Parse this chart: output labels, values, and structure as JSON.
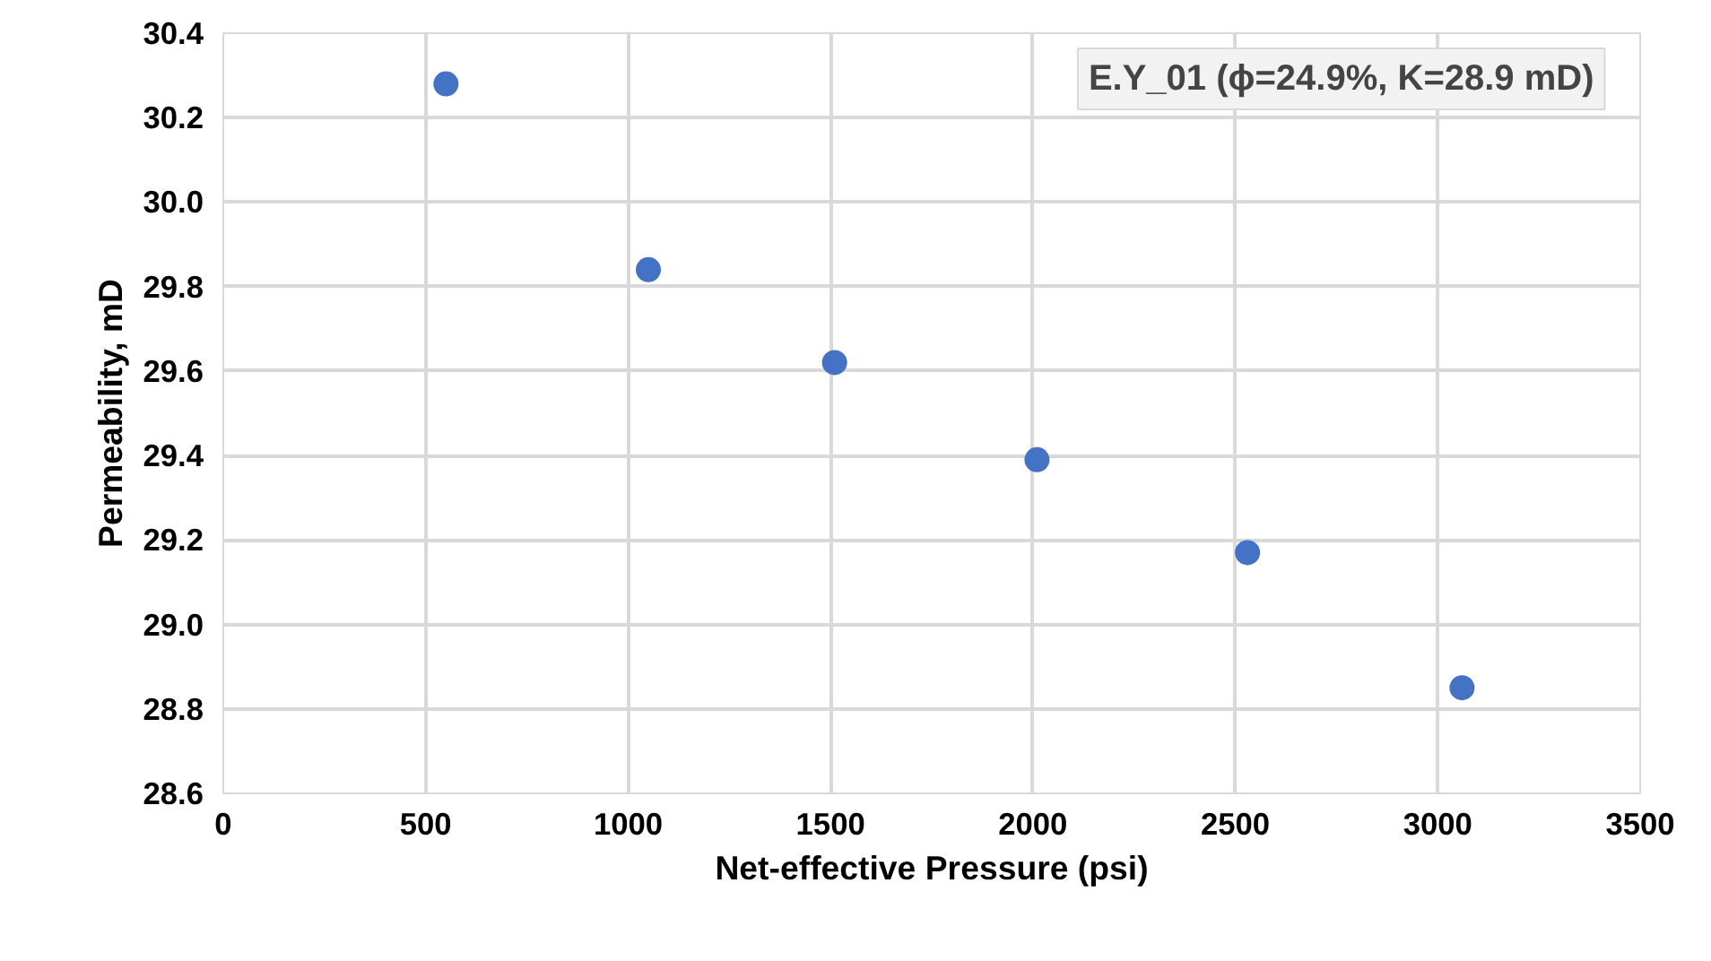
{
  "chart_data": {
    "type": "scatter",
    "xlabel": "Net-effective Pressure (psi)",
    "ylabel": "Permeability, mD",
    "annotations": [
      "E.Y_01 (ϕ=24.9%, K=28.9 mD)"
    ],
    "x": [
      550,
      1050,
      1510,
      2010,
      2530,
      3060
    ],
    "values": [
      30.28,
      29.84,
      29.62,
      29.39,
      29.17,
      28.85
    ],
    "color": "#4472c4",
    "marker": "circle",
    "grid": true,
    "xlim": [
      0,
      3500
    ],
    "xticks": [
      0,
      500,
      1000,
      1500,
      2000,
      2500,
      3000,
      3500
    ],
    "ylim": [
      28.6,
      30.4
    ],
    "yticks": [
      {
        "value": 28.6,
        "label": "28.6"
      },
      {
        "value": 28.8,
        "label": "28.8"
      },
      {
        "value": 29.0,
        "label": "29.0"
      },
      {
        "value": 29.2,
        "label": "29.2"
      },
      {
        "value": 29.4,
        "label": "29.4"
      },
      {
        "value": 29.6,
        "label": "29.6"
      },
      {
        "value": 29.8,
        "label": "29.8"
      },
      {
        "value": 30.0,
        "label": "30.0"
      },
      {
        "value": 30.2,
        "label": "30.2"
      },
      {
        "value": 30.4,
        "label": "30.4"
      }
    ]
  }
}
